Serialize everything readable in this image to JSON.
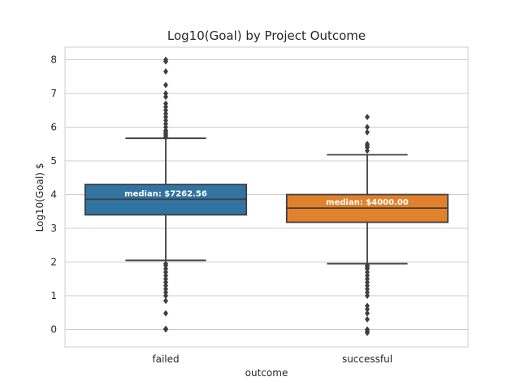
{
  "chart_data": {
    "type": "box",
    "title": "Log10(Goal) by Project Outcome",
    "xlabel": "outcome",
    "ylabel": "Log10(Goal) $",
    "ylim": [
      -0.5,
      8.35
    ],
    "yticks": [
      0,
      1,
      2,
      3,
      4,
      5,
      6,
      7,
      8
    ],
    "grid": true,
    "categories": [
      "failed",
      "successful"
    ],
    "boxes": [
      {
        "category": "failed",
        "color": "#3274a1",
        "q1": 3.4,
        "median": 3.86,
        "q3": 4.3,
        "whisker_low": 2.05,
        "whisker_high": 5.67,
        "median_label": "median: $7262.56",
        "outliers": [
          8.0,
          7.95,
          7.65,
          7.25,
          7.0,
          6.9,
          6.7,
          6.6,
          6.5,
          6.4,
          6.3,
          6.2,
          6.1,
          6.0,
          5.9,
          5.85,
          5.8,
          5.75,
          5.7,
          1.95,
          1.9,
          1.8,
          1.7,
          1.6,
          1.5,
          1.4,
          1.3,
          1.2,
          1.1,
          1.0,
          0.85,
          0.48,
          0.02,
          0.0
        ]
      },
      {
        "category": "successful",
        "color": "#e1812c",
        "q1": 3.18,
        "median": 3.6,
        "q3": 4.0,
        "whisker_low": 1.95,
        "whisker_high": 5.18,
        "median_label": "median: $4000.00",
        "outliers": [
          6.3,
          6.0,
          5.85,
          5.5,
          5.45,
          5.4,
          5.3,
          1.9,
          1.85,
          1.8,
          1.7,
          1.6,
          1.5,
          1.4,
          1.3,
          1.2,
          1.1,
          1.0,
          0.7,
          0.6,
          0.48,
          0.3,
          0.0,
          -0.05,
          -0.1
        ]
      }
    ]
  }
}
